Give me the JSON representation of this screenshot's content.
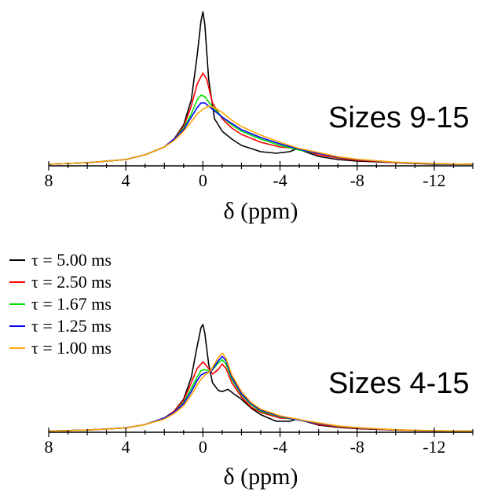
{
  "chart_data": [
    {
      "type": "line",
      "title": "Sizes 9-15",
      "xlabel": "δ (ppm)",
      "ylabel": "",
      "xlim": [
        8,
        -14
      ],
      "x_reversed": true,
      "xticks": [
        8,
        4,
        0,
        -4,
        -8,
        -12
      ],
      "xtick_labels": [
        "8",
        "4",
        "0",
        "-4",
        "-8",
        "-12"
      ],
      "series": [
        {
          "name": "τ = 5.00 ms",
          "color": "#000000",
          "x": [
            8,
            6,
            4,
            3,
            2,
            1.5,
            1,
            0.6,
            0.3,
            0.1,
            0,
            -0.1,
            -0.3,
            -0.6,
            -1,
            -1.5,
            -2,
            -3,
            -3.8,
            -4.5,
            -4.9,
            -5.3,
            -6,
            -7,
            -8,
            -10,
            -12,
            -14
          ],
          "y": [
            0.01,
            0.02,
            0.04,
            0.07,
            0.12,
            0.17,
            0.26,
            0.42,
            0.7,
            0.92,
            0.98,
            0.9,
            0.55,
            0.3,
            0.22,
            0.17,
            0.13,
            0.09,
            0.08,
            0.09,
            0.11,
            0.09,
            0.06,
            0.04,
            0.03,
            0.02,
            0.01,
            0.01
          ]
        },
        {
          "name": "τ = 2.50 ms",
          "color": "#ff0000",
          "x": [
            8,
            6,
            4,
            3,
            2,
            1.5,
            1,
            0.6,
            0.3,
            0,
            -0.2,
            -0.5,
            -1,
            -1.5,
            -2,
            -3,
            -4,
            -4.8,
            -5.5,
            -6,
            -7,
            -8,
            -10,
            -12,
            -14
          ],
          "y": [
            0.01,
            0.02,
            0.04,
            0.07,
            0.12,
            0.17,
            0.25,
            0.38,
            0.52,
            0.59,
            0.55,
            0.4,
            0.3,
            0.24,
            0.2,
            0.15,
            0.12,
            0.11,
            0.09,
            0.07,
            0.05,
            0.035,
            0.02,
            0.012,
            0.01
          ]
        },
        {
          "name": "τ = 1.67 ms",
          "color": "#00e000",
          "x": [
            8,
            6,
            4,
            3,
            2,
            1.5,
            1,
            0.6,
            0.3,
            0.1,
            -0.1,
            -0.4,
            -1,
            -1.5,
            -2,
            -3,
            -4,
            -5,
            -6,
            -7,
            -8,
            -10,
            -12,
            -14
          ],
          "y": [
            0.01,
            0.02,
            0.04,
            0.07,
            0.12,
            0.17,
            0.24,
            0.33,
            0.42,
            0.45,
            0.44,
            0.39,
            0.31,
            0.26,
            0.22,
            0.17,
            0.13,
            0.1,
            0.08,
            0.055,
            0.04,
            0.022,
            0.013,
            0.01
          ]
        },
        {
          "name": "τ = 1.25 ms",
          "color": "#0000ff",
          "x": [
            8,
            6,
            4,
            3,
            2,
            1.5,
            1,
            0.6,
            0.3,
            0.1,
            -0.1,
            -0.4,
            -1,
            -1.5,
            -2,
            -3,
            -4,
            -5,
            -6,
            -7,
            -8,
            -10,
            -12,
            -14
          ],
          "y": [
            0.01,
            0.02,
            0.04,
            0.07,
            0.12,
            0.17,
            0.23,
            0.31,
            0.37,
            0.4,
            0.4,
            0.37,
            0.31,
            0.27,
            0.23,
            0.18,
            0.14,
            0.105,
            0.08,
            0.056,
            0.04,
            0.022,
            0.013,
            0.01
          ]
        },
        {
          "name": "τ = 1.00 ms",
          "color": "#ffa500",
          "x": [
            8,
            6,
            4,
            3,
            2,
            1.5,
            1,
            0.6,
            0.3,
            0,
            -0.3,
            -0.6,
            -1,
            -1.5,
            -2,
            -3,
            -4,
            -5,
            -6,
            -7,
            -8,
            -10,
            -12,
            -14
          ],
          "y": [
            0.01,
            0.02,
            0.04,
            0.07,
            0.12,
            0.16,
            0.22,
            0.28,
            0.33,
            0.36,
            0.38,
            0.37,
            0.34,
            0.29,
            0.25,
            0.195,
            0.15,
            0.11,
            0.085,
            0.058,
            0.042,
            0.023,
            0.014,
            0.01
          ]
        }
      ]
    },
    {
      "type": "line",
      "title": "Sizes 4-15",
      "xlabel": "δ (ppm)",
      "ylabel": "",
      "xlim": [
        8,
        -14
      ],
      "x_reversed": true,
      "xticks": [
        8,
        4,
        0,
        -4,
        -8,
        -12
      ],
      "xtick_labels": [
        "8",
        "4",
        "0",
        "-4",
        "-8",
        "-12"
      ],
      "series": [
        {
          "name": "τ = 5.00 ms",
          "color": "#000000",
          "x": [
            8,
            6,
            4,
            3,
            2,
            1.5,
            1,
            0.6,
            0.3,
            0.1,
            0,
            -0.1,
            -0.3,
            -0.5,
            -0.8,
            -1,
            -1.3,
            -1.6,
            -2,
            -2.5,
            -3,
            -3.8,
            -4.5,
            -4.9,
            -5.3,
            -6,
            -7,
            -8,
            -10,
            -12,
            -14
          ],
          "y": [
            0.01,
            0.02,
            0.04,
            0.07,
            0.13,
            0.19,
            0.3,
            0.5,
            0.78,
            0.95,
            0.98,
            0.9,
            0.62,
            0.45,
            0.38,
            0.37,
            0.39,
            0.35,
            0.3,
            0.22,
            0.16,
            0.1,
            0.1,
            0.12,
            0.1,
            0.065,
            0.045,
            0.032,
            0.02,
            0.012,
            0.01
          ]
        },
        {
          "name": "τ = 2.50 ms",
          "color": "#ff0000",
          "x": [
            8,
            6,
            4,
            3,
            2,
            1.5,
            1,
            0.6,
            0.3,
            0,
            -0.2,
            -0.5,
            -0.8,
            -1,
            -1.2,
            -1.5,
            -2,
            -2.5,
            -3,
            -4,
            -4.8,
            -5.5,
            -6,
            -7,
            -8,
            -10,
            -12,
            -14
          ],
          "y": [
            0.01,
            0.02,
            0.04,
            0.07,
            0.13,
            0.19,
            0.29,
            0.45,
            0.58,
            0.64,
            0.6,
            0.53,
            0.57,
            0.62,
            0.58,
            0.45,
            0.32,
            0.23,
            0.18,
            0.13,
            0.12,
            0.095,
            0.07,
            0.05,
            0.035,
            0.02,
            0.012,
            0.01
          ]
        },
        {
          "name": "τ = 1.67 ms",
          "color": "#00e000",
          "x": [
            8,
            6,
            4,
            3,
            2,
            1.5,
            1,
            0.6,
            0.3,
            0.1,
            -0.1,
            -0.4,
            -0.8,
            -1,
            -1.2,
            -1.5,
            -2,
            -2.5,
            -3,
            -4,
            -5,
            -6,
            -7,
            -8,
            -10,
            -12,
            -14
          ],
          "y": [
            0.01,
            0.02,
            0.04,
            0.07,
            0.13,
            0.18,
            0.27,
            0.4,
            0.5,
            0.56,
            0.57,
            0.55,
            0.63,
            0.66,
            0.62,
            0.48,
            0.34,
            0.25,
            0.19,
            0.14,
            0.11,
            0.08,
            0.055,
            0.04,
            0.022,
            0.013,
            0.01
          ]
        },
        {
          "name": "τ = 1.25 ms",
          "color": "#0000ff",
          "x": [
            8,
            6,
            4,
            3,
            2,
            1.5,
            1,
            0.6,
            0.3,
            0.1,
            -0.1,
            -0.4,
            -0.8,
            -1,
            -1.2,
            -1.5,
            -2,
            -2.5,
            -3,
            -4,
            -5,
            -6,
            -7,
            -8,
            -10,
            -12,
            -14
          ],
          "y": [
            0.01,
            0.02,
            0.04,
            0.07,
            0.13,
            0.18,
            0.26,
            0.37,
            0.47,
            0.52,
            0.54,
            0.55,
            0.65,
            0.69,
            0.65,
            0.5,
            0.35,
            0.26,
            0.2,
            0.145,
            0.11,
            0.08,
            0.056,
            0.04,
            0.022,
            0.013,
            0.01
          ]
        },
        {
          "name": "τ = 1.00 ms",
          "color": "#ffa500",
          "x": [
            8,
            6,
            4,
            3,
            2,
            1.5,
            1,
            0.6,
            0.3,
            0.1,
            -0.1,
            -0.4,
            -0.8,
            -1,
            -1.2,
            -1.5,
            -2,
            -2.5,
            -3,
            -4,
            -5,
            -6,
            -7,
            -8,
            -10,
            -12,
            -14
          ],
          "y": [
            0.01,
            0.02,
            0.04,
            0.07,
            0.12,
            0.17,
            0.24,
            0.34,
            0.43,
            0.48,
            0.52,
            0.56,
            0.68,
            0.72,
            0.67,
            0.52,
            0.37,
            0.27,
            0.21,
            0.15,
            0.115,
            0.085,
            0.058,
            0.042,
            0.023,
            0.014,
            0.01
          ]
        }
      ]
    }
  ],
  "legend": {
    "items": [
      {
        "label": "τ = 5.00 ms",
        "color": "#000000"
      },
      {
        "label": "τ = 2.50 ms",
        "color": "#ff0000"
      },
      {
        "label": "τ = 1.67 ms",
        "color": "#00e000"
      },
      {
        "label": "τ = 1.25 ms",
        "color": "#0000ff"
      },
      {
        "label": "τ = 1.00 ms",
        "color": "#ffa500"
      }
    ]
  }
}
